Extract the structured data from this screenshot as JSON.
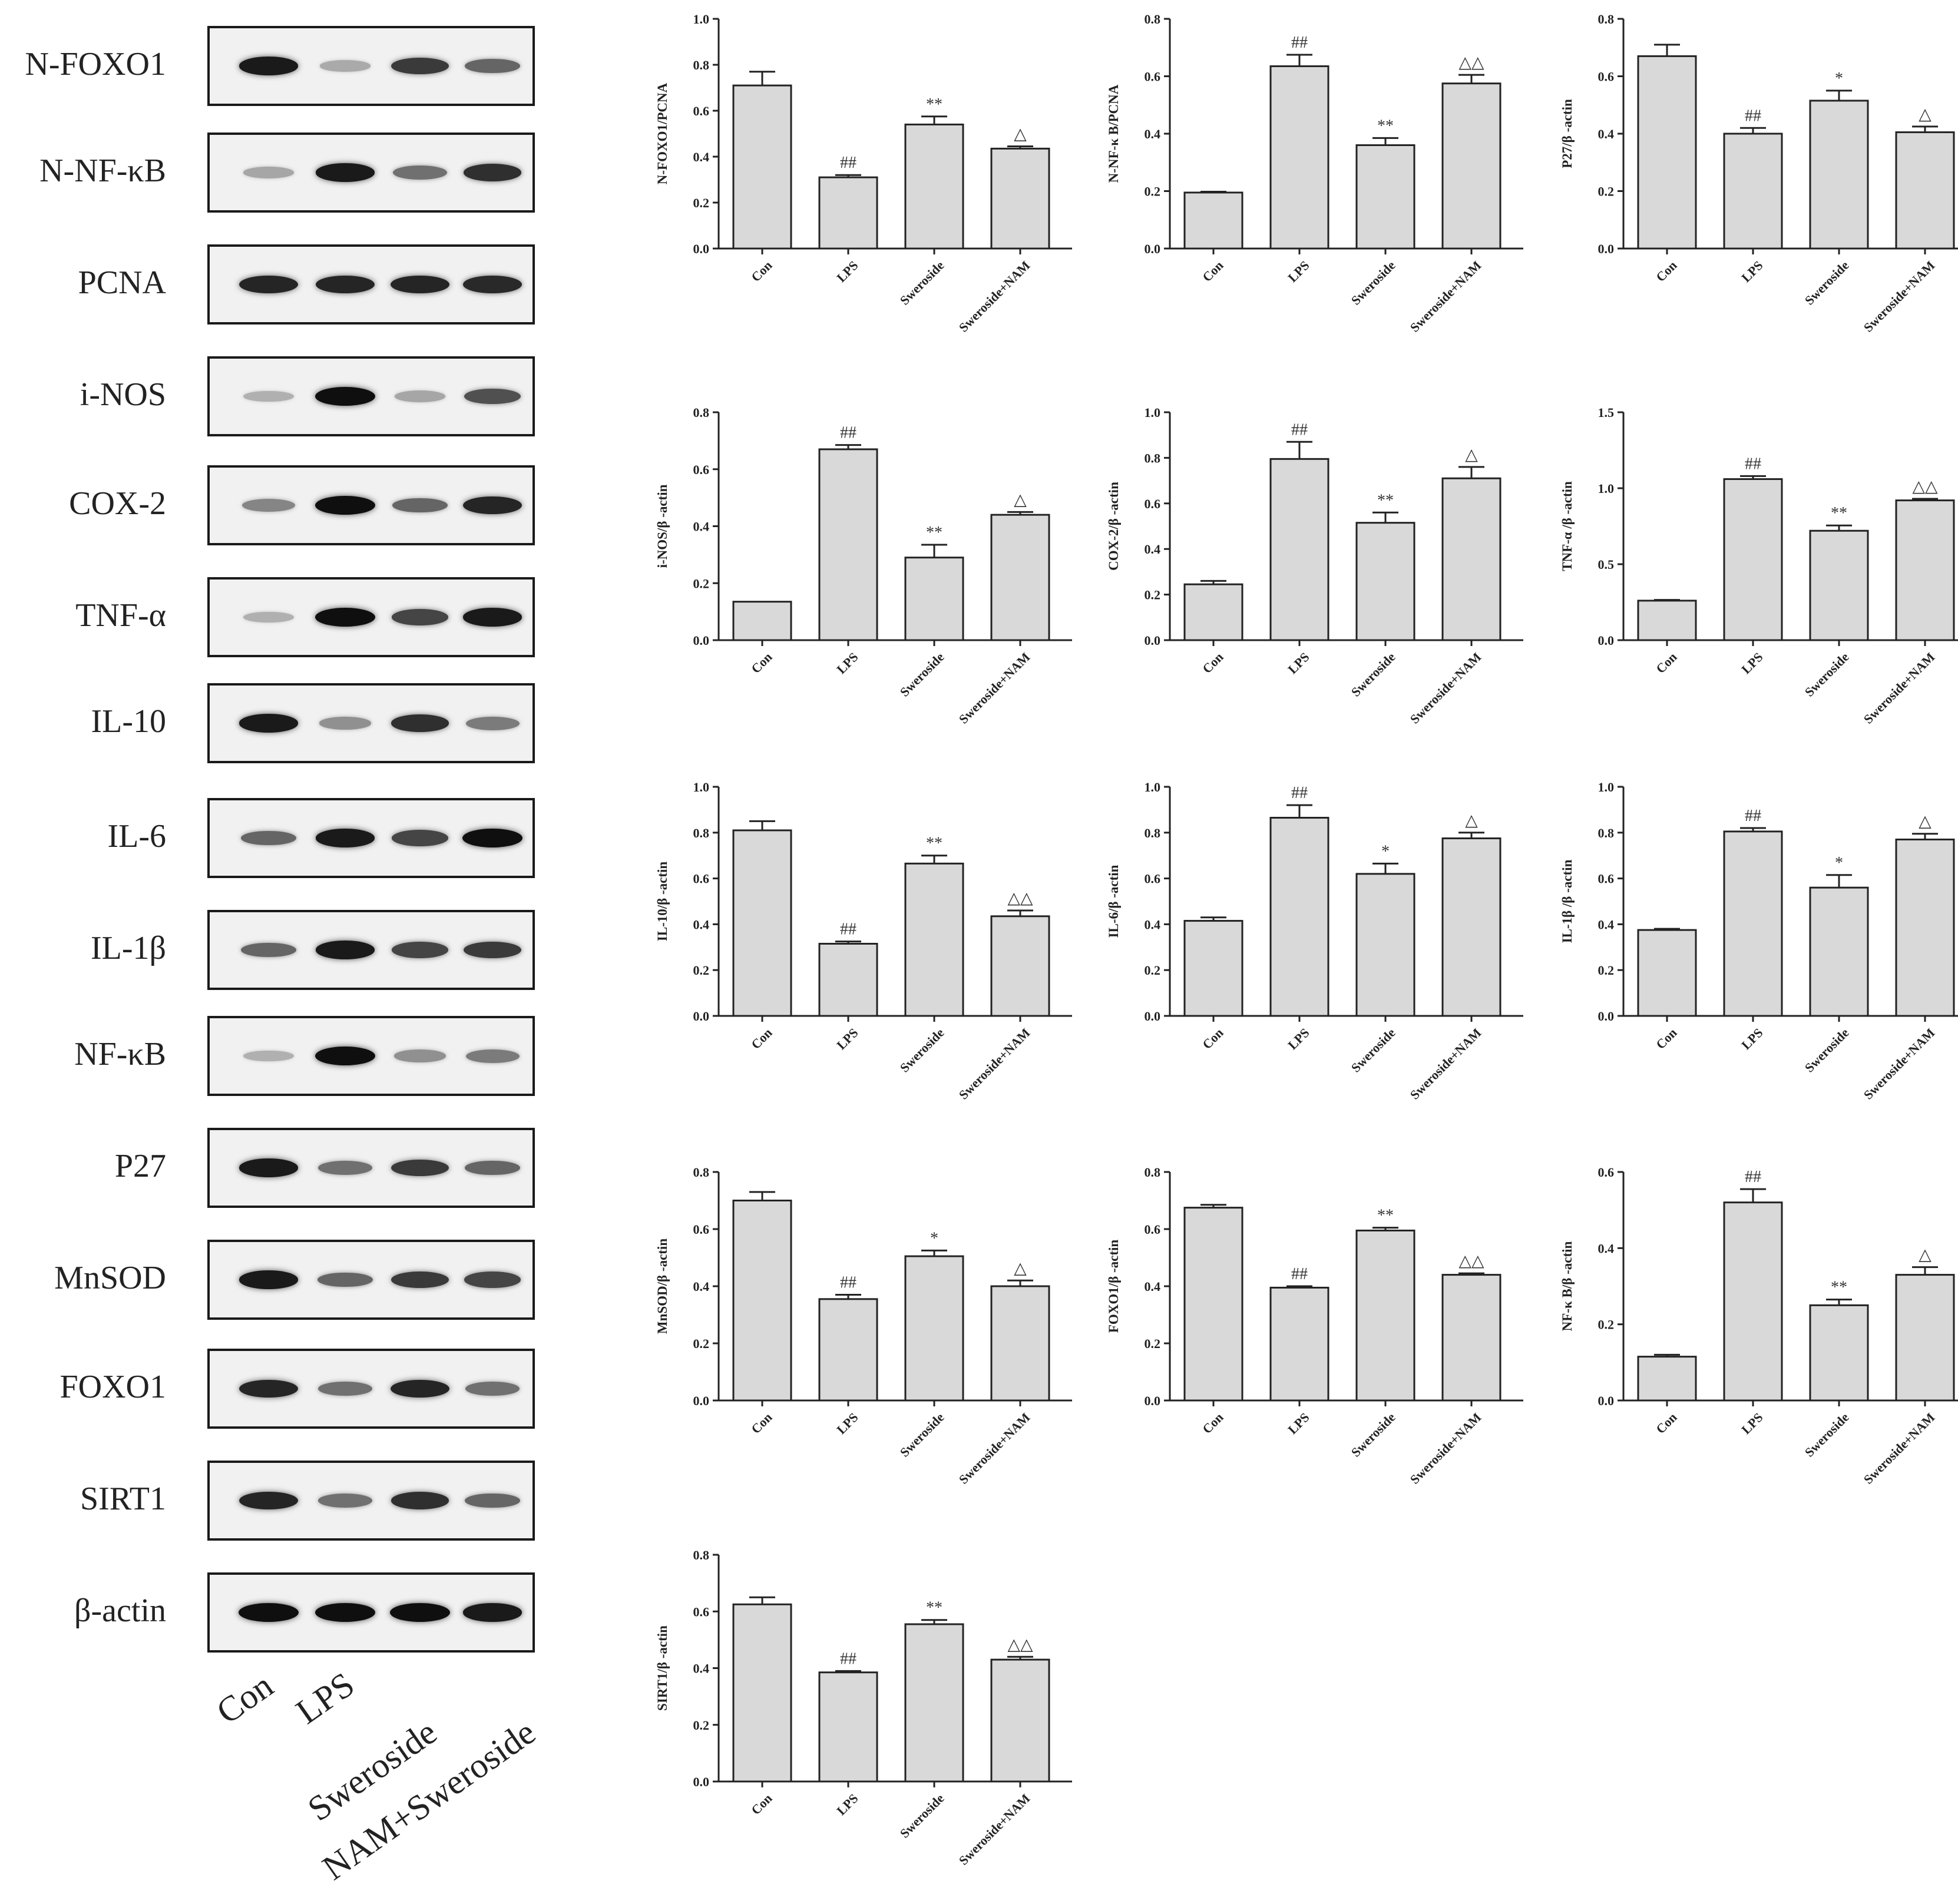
{
  "blot": {
    "rows": [
      {
        "label": "N-FOXO1",
        "bands": [
          0.95,
          0.28,
          0.8,
          0.6
        ]
      },
      {
        "label": "N-NF-κB",
        "bands": [
          0.3,
          0.95,
          0.55,
          0.85
        ]
      },
      {
        "label": "PCNA",
        "bands": [
          0.9,
          0.9,
          0.9,
          0.88
        ]
      },
      {
        "label": "i-NOS",
        "bands": [
          0.25,
          1.0,
          0.3,
          0.7
        ]
      },
      {
        "label": "COX-2",
        "bands": [
          0.45,
          1.0,
          0.6,
          0.9
        ]
      },
      {
        "label": "TNF-α",
        "bands": [
          0.25,
          1.0,
          0.75,
          0.95
        ]
      },
      {
        "label": "IL-10",
        "bands": [
          0.95,
          0.4,
          0.85,
          0.5
        ]
      },
      {
        "label": "IL-6",
        "bands": [
          0.6,
          0.95,
          0.75,
          1.0
        ]
      },
      {
        "label": "IL-1β",
        "bands": [
          0.6,
          0.95,
          0.75,
          0.8
        ]
      },
      {
        "label": "NF-κB",
        "bands": [
          0.25,
          1.0,
          0.4,
          0.5
        ]
      },
      {
        "label": "P27",
        "bands": [
          0.95,
          0.55,
          0.8,
          0.6
        ]
      },
      {
        "label": "MnSOD",
        "bands": [
          0.95,
          0.6,
          0.8,
          0.75
        ]
      },
      {
        "label": "FOXO1",
        "bands": [
          0.9,
          0.55,
          0.9,
          0.55
        ]
      },
      {
        "label": "SIRT1",
        "bands": [
          0.9,
          0.55,
          0.85,
          0.6
        ]
      },
      {
        "label": "β-actin",
        "bands": [
          1.0,
          1.0,
          1.0,
          0.95
        ]
      }
    ],
    "lanes": [
      "Con",
      "LPS",
      "Sweroside",
      "NAM+Sweroside"
    ]
  },
  "chart_data": [
    {
      "type": "bar",
      "ylabel": "N-FOXO1/PCNA",
      "categories": [
        "Con",
        "LPS",
        "Sweroside",
        "Sweroside+NAM"
      ],
      "values": [
        0.71,
        0.31,
        0.54,
        0.435
      ],
      "errors": [
        0.06,
        0.01,
        0.035,
        0.01
      ],
      "annotations": [
        "",
        "##",
        "**",
        "△"
      ],
      "ylim": [
        0,
        1.0
      ],
      "ticks": [
        "0.0",
        "0.2",
        "0.4",
        "0.6",
        "0.8",
        "1.0"
      ]
    },
    {
      "type": "bar",
      "ylabel": "N-NF-κ B/PCNA",
      "categories": [
        "Con",
        "LPS",
        "Sweroside",
        "Sweroside+NAM"
      ],
      "values": [
        0.195,
        0.635,
        0.36,
        0.575
      ],
      "errors": [
        0.003,
        0.04,
        0.025,
        0.03
      ],
      "annotations": [
        "",
        "##",
        "**",
        "△△"
      ],
      "ylim": [
        0,
        0.8
      ],
      "ticks": [
        "0.0",
        "0.2",
        "0.4",
        "0.6",
        "0.8"
      ]
    },
    {
      "type": "bar",
      "ylabel": "P27/β -actin",
      "categories": [
        "Con",
        "LPS",
        "Sweroside",
        "Sweroside+NAM"
      ],
      "values": [
        0.67,
        0.4,
        0.515,
        0.405
      ],
      "errors": [
        0.04,
        0.02,
        0.035,
        0.02
      ],
      "annotations": [
        "",
        "##",
        "*",
        "△"
      ],
      "ylim": [
        0,
        0.8
      ],
      "ticks": [
        "0.0",
        "0.2",
        "0.4",
        "0.6",
        "0.8"
      ]
    },
    {
      "type": "bar",
      "ylabel": "i-NOS/β -actin",
      "categories": [
        "Con",
        "LPS",
        "Sweroside",
        "Sweroside+NAM"
      ],
      "values": [
        0.135,
        0.67,
        0.29,
        0.44
      ],
      "errors": [
        0.0,
        0.015,
        0.045,
        0.01
      ],
      "annotations": [
        "",
        "##",
        "**",
        "△"
      ],
      "ylim": [
        0,
        0.8
      ],
      "ticks": [
        "0.0",
        "0.2",
        "0.4",
        "0.6",
        "0.8"
      ]
    },
    {
      "type": "bar",
      "ylabel": "COX-2/β -actin",
      "categories": [
        "Con",
        "LPS",
        "Sweroside",
        "Sweroside+NAM"
      ],
      "values": [
        0.245,
        0.795,
        0.515,
        0.71
      ],
      "errors": [
        0.015,
        0.075,
        0.045,
        0.05
      ],
      "annotations": [
        "",
        "##",
        "**",
        "△"
      ],
      "ylim": [
        0,
        1.0
      ],
      "ticks": [
        "0.0",
        "0.2",
        "0.4",
        "0.6",
        "0.8",
        "1.0"
      ]
    },
    {
      "type": "bar",
      "ylabel": "TNF-α /β -actin",
      "categories": [
        "Con",
        "LPS",
        "Sweroside",
        "Sweroside+NAM"
      ],
      "values": [
        0.26,
        1.06,
        0.72,
        0.92
      ],
      "errors": [
        0.005,
        0.02,
        0.035,
        0.01
      ],
      "annotations": [
        "",
        "##",
        "**",
        "△△"
      ],
      "ylim": [
        0,
        1.5
      ],
      "ticks": [
        "0.0",
        "0.5",
        "1.0",
        "1.5"
      ]
    },
    {
      "type": "bar",
      "ylabel": "IL-10/β -actin",
      "categories": [
        "Con",
        "LPS",
        "Sweroside",
        "Sweroside+NAM"
      ],
      "values": [
        0.81,
        0.315,
        0.665,
        0.435
      ],
      "errors": [
        0.04,
        0.01,
        0.035,
        0.025
      ],
      "annotations": [
        "",
        "##",
        "**",
        "△△"
      ],
      "ylim": [
        0,
        1.0
      ],
      "ticks": [
        "0.0",
        "0.2",
        "0.4",
        "0.6",
        "0.8",
        "1.0"
      ]
    },
    {
      "type": "bar",
      "ylabel": "IL-6/β -actin",
      "categories": [
        "Con",
        "LPS",
        "Sweroside",
        "Sweroside+NAM"
      ],
      "values": [
        0.415,
        0.865,
        0.62,
        0.775
      ],
      "errors": [
        0.015,
        0.055,
        0.045,
        0.025
      ],
      "annotations": [
        "",
        "##",
        "*",
        "△"
      ],
      "ylim": [
        0,
        1.0
      ],
      "ticks": [
        "0.0",
        "0.2",
        "0.4",
        "0.6",
        "0.8",
        "1.0"
      ]
    },
    {
      "type": "bar",
      "ylabel": "IL-1β /β -actin",
      "categories": [
        "Con",
        "LPS",
        "Sweroside",
        "Sweroside+NAM"
      ],
      "values": [
        0.375,
        0.805,
        0.56,
        0.77
      ],
      "errors": [
        0.005,
        0.015,
        0.055,
        0.025
      ],
      "annotations": [
        "",
        "##",
        "*",
        "△"
      ],
      "ylim": [
        0,
        1.0
      ],
      "ticks": [
        "0.0",
        "0.2",
        "0.4",
        "0.6",
        "0.8",
        "1.0"
      ]
    },
    {
      "type": "bar",
      "ylabel": "MnSOD/β -actin",
      "categories": [
        "Con",
        "LPS",
        "Sweroside",
        "Sweroside+NAM"
      ],
      "values": [
        0.7,
        0.355,
        0.505,
        0.4
      ],
      "errors": [
        0.03,
        0.015,
        0.02,
        0.02
      ],
      "annotations": [
        "",
        "##",
        "*",
        "△"
      ],
      "ylim": [
        0,
        0.8
      ],
      "ticks": [
        "0.0",
        "0.2",
        "0.4",
        "0.6",
        "0.8"
      ]
    },
    {
      "type": "bar",
      "ylabel": "FOXO1/β -actin",
      "categories": [
        "Con",
        "LPS",
        "Sweroside",
        "Sweroside+NAM"
      ],
      "values": [
        0.675,
        0.395,
        0.595,
        0.44
      ],
      "errors": [
        0.01,
        0.005,
        0.01,
        0.005
      ],
      "annotations": [
        "",
        "##",
        "**",
        "△△"
      ],
      "ylim": [
        0,
        0.8
      ],
      "ticks": [
        "0.0",
        "0.2",
        "0.4",
        "0.6",
        "0.8"
      ]
    },
    {
      "type": "bar",
      "ylabel": "NF-κ B/β -actin",
      "categories": [
        "Con",
        "LPS",
        "Sweroside",
        "Sweroside+NAM"
      ],
      "values": [
        0.115,
        0.52,
        0.25,
        0.33
      ],
      "errors": [
        0.005,
        0.035,
        0.015,
        0.02
      ],
      "annotations": [
        "",
        "##",
        "**",
        "△"
      ],
      "ylim": [
        0,
        0.6
      ],
      "ticks": [
        "0.0",
        "0.2",
        "0.4",
        "0.6"
      ]
    },
    {
      "type": "bar",
      "ylabel": "SIRT1/β -actin",
      "categories": [
        "Con",
        "LPS",
        "Sweroside",
        "Sweroside+NAM"
      ],
      "values": [
        0.625,
        0.385,
        0.555,
        0.43
      ],
      "errors": [
        0.025,
        0.005,
        0.015,
        0.01
      ],
      "annotations": [
        "",
        "##",
        "**",
        "△△"
      ],
      "ylim": [
        0,
        0.8
      ],
      "ticks": [
        "0.0",
        "0.2",
        "0.4",
        "0.6",
        "0.8"
      ]
    }
  ]
}
